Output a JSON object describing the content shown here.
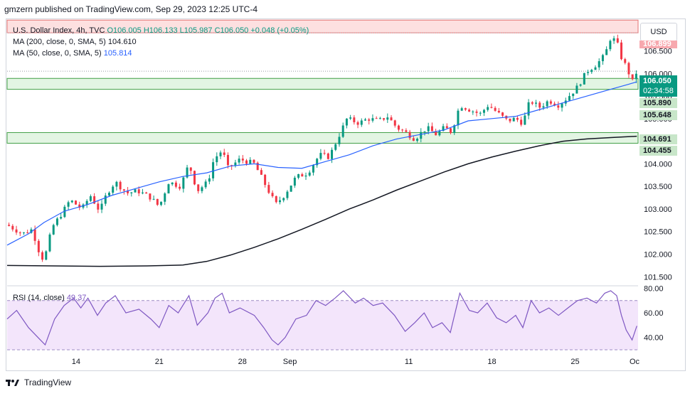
{
  "header": {
    "publisher": "gmzern published on TradingView.com, Sep 29, 2023 12:25 UTC-4"
  },
  "currency_button": "USD",
  "legend": {
    "main_label": "U.S. Dollar Index, 4h, TVC",
    "open": "O106.005",
    "high": "H106.133",
    "low": "L105.987",
    "close": "C106.050",
    "change": "+0.048 (+0.05%)",
    "ma200_label": "MA (200, close, 0, SMA, 5)",
    "ma200_value": "104.610",
    "ma50_label": "MA (50, close, 0, SMA, 5)",
    "ma50_value": "105.814",
    "rsi_label": "RSI (14, close)",
    "rsi_value": "49.37"
  },
  "price_tags": {
    "top": "106.899",
    "last": "106.050",
    "countdown": "02:34:58",
    "zone1_top": "105.890",
    "zone1_bottom": "105.648",
    "zone2_top": "104.691",
    "zone2_bottom": "104.455"
  },
  "footer": {
    "brand": "TradingView"
  },
  "colors": {
    "up": "#089981",
    "down": "#f23645",
    "ma50": "#2962ff",
    "ma200": "#131722",
    "rsi": "#7e57c2",
    "zone_green": "#e3f5e3",
    "zone_red": "#fde0e0"
  },
  "chart_data": {
    "type": "line",
    "price_axis": {
      "ticks": [
        "106.500",
        "106.000",
        "105.500",
        "105.000",
        "104.500",
        "104.000",
        "103.500",
        "103.000",
        "102.500",
        "102.000",
        "101.500"
      ],
      "range": [
        101.3,
        107.2
      ]
    },
    "rsi_axis": {
      "ticks": [
        "80.00",
        "60.00",
        "40.00"
      ],
      "range": [
        30,
        82
      ]
    },
    "x_ticks": [
      {
        "label": "14",
        "day": 14
      },
      {
        "label": "21",
        "day": 21
      },
      {
        "label": "28",
        "day": 28
      },
      {
        "label": "Sep",
        "day": 32
      },
      {
        "label": "11",
        "day": 42
      },
      {
        "label": "18",
        "day": 49
      },
      {
        "label": "25",
        "day": 56
      },
      {
        "label": "Oc",
        "day": 61
      }
    ],
    "x_range": [
      8.2,
      61.3
    ],
    "zones": [
      {
        "kind": "resistance",
        "from": 106.899,
        "to": 107.18
      },
      {
        "kind": "support",
        "from": 105.648,
        "to": 105.89
      },
      {
        "kind": "support",
        "from": 104.455,
        "to": 104.691
      }
    ],
    "price_keypoints": [
      [
        8.2,
        102.65
      ],
      [
        9.5,
        102.45
      ],
      [
        10.3,
        102.55
      ],
      [
        10.9,
        102.05
      ],
      [
        11.3,
        101.85
      ],
      [
        12.0,
        102.6
      ],
      [
        12.8,
        102.9
      ],
      [
        13.5,
        103.2
      ],
      [
        14.5,
        103.0
      ],
      [
        15.2,
        103.3
      ],
      [
        16.0,
        102.95
      ],
      [
        16.6,
        103.35
      ],
      [
        17.3,
        103.6
      ],
      [
        18.3,
        103.35
      ],
      [
        19.2,
        103.4
      ],
      [
        20.3,
        103.25
      ],
      [
        21.0,
        103.05
      ],
      [
        21.8,
        103.6
      ],
      [
        22.8,
        103.5
      ],
      [
        23.5,
        104.0
      ],
      [
        24.2,
        103.4
      ],
      [
        25.1,
        103.6
      ],
      [
        25.6,
        104.1
      ],
      [
        26.3,
        104.3
      ],
      [
        26.8,
        103.9
      ],
      [
        27.8,
        104.1
      ],
      [
        29.0,
        104.0
      ],
      [
        30.0,
        103.5
      ],
      [
        30.8,
        103.1
      ],
      [
        31.5,
        103.3
      ],
      [
        32.5,
        103.7
      ],
      [
        33.5,
        103.8
      ],
      [
        34.5,
        104.2
      ],
      [
        35.3,
        104.15
      ],
      [
        36.0,
        104.55
      ],
      [
        36.8,
        105.0
      ],
      [
        37.8,
        104.9
      ],
      [
        38.6,
        105.0
      ],
      [
        39.5,
        104.95
      ],
      [
        40.2,
        105.05
      ],
      [
        41.0,
        104.8
      ],
      [
        41.7,
        104.7
      ],
      [
        42.5,
        104.55
      ],
      [
        43.5,
        104.8
      ],
      [
        44.3,
        104.65
      ],
      [
        45.0,
        104.8
      ],
      [
        45.6,
        104.7
      ],
      [
        46.3,
        105.3
      ],
      [
        47.1,
        105.2
      ],
      [
        48.0,
        105.1
      ],
      [
        48.7,
        105.3
      ],
      [
        49.6,
        105.1
      ],
      [
        50.3,
        104.95
      ],
      [
        51.0,
        105.0
      ],
      [
        51.6,
        104.9
      ],
      [
        52.2,
        105.4
      ],
      [
        53.0,
        105.25
      ],
      [
        53.8,
        105.4
      ],
      [
        54.6,
        105.3
      ],
      [
        55.3,
        105.45
      ],
      [
        56.2,
        105.7
      ],
      [
        57.0,
        106.05
      ],
      [
        57.8,
        106.2
      ],
      [
        58.5,
        106.4
      ],
      [
        59.0,
        106.8
      ],
      [
        59.5,
        106.7
      ],
      [
        59.9,
        106.35
      ],
      [
        60.4,
        106.1
      ],
      [
        60.8,
        105.8
      ],
      [
        61.2,
        106.05
      ]
    ],
    "ma50_keypoints": [
      [
        8.2,
        102.2
      ],
      [
        10.0,
        102.45
      ],
      [
        11.3,
        102.7
      ],
      [
        13.0,
        102.95
      ],
      [
        15.0,
        103.1
      ],
      [
        17.0,
        103.3
      ],
      [
        19.0,
        103.45
      ],
      [
        21.0,
        103.6
      ],
      [
        23.0,
        103.72
      ],
      [
        25.0,
        103.8
      ],
      [
        27.0,
        103.95
      ],
      [
        29.0,
        104.0
      ],
      [
        31.0,
        103.92
      ],
      [
        33.0,
        103.9
      ],
      [
        35.0,
        104.05
      ],
      [
        37.0,
        104.2
      ],
      [
        39.0,
        104.4
      ],
      [
        41.0,
        104.55
      ],
      [
        43.0,
        104.65
      ],
      [
        45.0,
        104.75
      ],
      [
        47.0,
        104.95
      ],
      [
        49.0,
        105.0
      ],
      [
        51.0,
        105.05
      ],
      [
        53.0,
        105.2
      ],
      [
        55.0,
        105.35
      ],
      [
        57.0,
        105.5
      ],
      [
        59.0,
        105.65
      ],
      [
        60.5,
        105.76
      ],
      [
        61.2,
        105.814
      ]
    ],
    "ma200_keypoints": [
      [
        8.2,
        101.75
      ],
      [
        12.0,
        101.74
      ],
      [
        16.0,
        101.73
      ],
      [
        20.0,
        101.74
      ],
      [
        23.0,
        101.76
      ],
      [
        25.0,
        101.84
      ],
      [
        27.0,
        101.98
      ],
      [
        29.0,
        102.15
      ],
      [
        31.0,
        102.34
      ],
      [
        33.0,
        102.55
      ],
      [
        35.0,
        102.77
      ],
      [
        37.0,
        103.0
      ],
      [
        39.0,
        103.2
      ],
      [
        41.0,
        103.42
      ],
      [
        43.0,
        103.62
      ],
      [
        45.0,
        103.82
      ],
      [
        47.0,
        104.0
      ],
      [
        49.0,
        104.15
      ],
      [
        51.0,
        104.28
      ],
      [
        53.0,
        104.4
      ],
      [
        55.0,
        104.5
      ],
      [
        57.0,
        104.55
      ],
      [
        59.0,
        104.58
      ],
      [
        61.2,
        104.61
      ]
    ],
    "rsi_keypoints": [
      [
        8.2,
        55
      ],
      [
        9.0,
        62
      ],
      [
        10.0,
        48
      ],
      [
        11.0,
        38
      ],
      [
        11.4,
        34
      ],
      [
        12.2,
        55
      ],
      [
        13.0,
        66
      ],
      [
        13.8,
        72
      ],
      [
        14.4,
        64
      ],
      [
        15.0,
        72
      ],
      [
        15.8,
        58
      ],
      [
        16.5,
        68
      ],
      [
        17.3,
        74
      ],
      [
        18.2,
        60
      ],
      [
        19.3,
        63
      ],
      [
        20.3,
        55
      ],
      [
        21.0,
        48
      ],
      [
        21.8,
        66
      ],
      [
        22.6,
        60
      ],
      [
        23.5,
        74
      ],
      [
        24.2,
        50
      ],
      [
        25.1,
        60
      ],
      [
        25.7,
        72
      ],
      [
        26.3,
        76
      ],
      [
        26.9,
        60
      ],
      [
        27.8,
        64
      ],
      [
        29.0,
        58
      ],
      [
        29.8,
        48
      ],
      [
        30.5,
        38
      ],
      [
        31.0,
        34
      ],
      [
        31.6,
        40
      ],
      [
        32.5,
        55
      ],
      [
        33.4,
        58
      ],
      [
        34.2,
        70
      ],
      [
        35.0,
        66
      ],
      [
        35.8,
        72
      ],
      [
        36.5,
        78
      ],
      [
        37.5,
        68
      ],
      [
        38.2,
        72
      ],
      [
        39.0,
        66
      ],
      [
        39.8,
        68
      ],
      [
        40.8,
        58
      ],
      [
        41.7,
        45
      ],
      [
        42.5,
        52
      ],
      [
        43.3,
        60
      ],
      [
        44.0,
        48
      ],
      [
        44.8,
        52
      ],
      [
        45.5,
        44
      ],
      [
        46.3,
        76
      ],
      [
        47.1,
        62
      ],
      [
        47.8,
        60
      ],
      [
        48.6,
        68
      ],
      [
        49.4,
        56
      ],
      [
        50.2,
        52
      ],
      [
        51.0,
        58
      ],
      [
        51.6,
        48
      ],
      [
        52.3,
        70
      ],
      [
        53.0,
        60
      ],
      [
        53.8,
        64
      ],
      [
        54.6,
        58
      ],
      [
        55.4,
        64
      ],
      [
        56.2,
        70
      ],
      [
        57.0,
        72
      ],
      [
        57.8,
        68
      ],
      [
        58.5,
        76
      ],
      [
        59.0,
        78
      ],
      [
        59.5,
        74
      ],
      [
        59.9,
        58
      ],
      [
        60.3,
        46
      ],
      [
        60.8,
        38
      ],
      [
        61.2,
        49.37
      ]
    ]
  }
}
